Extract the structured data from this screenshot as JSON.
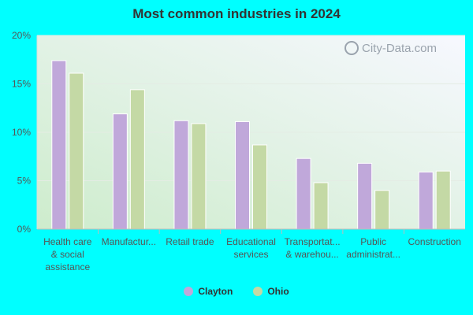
{
  "chart_data": {
    "type": "bar",
    "title": "Most common industries in 2024",
    "categories": [
      [
        "Health care",
        "& social",
        "assistance"
      ],
      [
        "Manufactur..."
      ],
      [
        "Retail trade"
      ],
      [
        "Educational",
        "services"
      ],
      [
        "Transportat...",
        "& warehou..."
      ],
      [
        "Public",
        "administrat..."
      ],
      [
        "Construction"
      ]
    ],
    "series": [
      {
        "name": "Clayton",
        "color": "#c0a8da",
        "values": [
          17.4,
          11.9,
          11.2,
          11.1,
          7.3,
          6.8,
          5.9
        ]
      },
      {
        "name": "Ohio",
        "color": "#c4d9a5",
        "values": [
          16.1,
          14.4,
          10.9,
          8.7,
          4.8,
          4.0,
          6.0
        ]
      }
    ],
    "y_ticks": [
      "0%",
      "5%",
      "10%",
      "15%",
      "20%"
    ],
    "ylim": [
      0,
      20
    ],
    "grid": true,
    "legend_position": "bottom"
  },
  "watermark": {
    "text": "City-Data.com",
    "icon": "magnifier-icon"
  }
}
